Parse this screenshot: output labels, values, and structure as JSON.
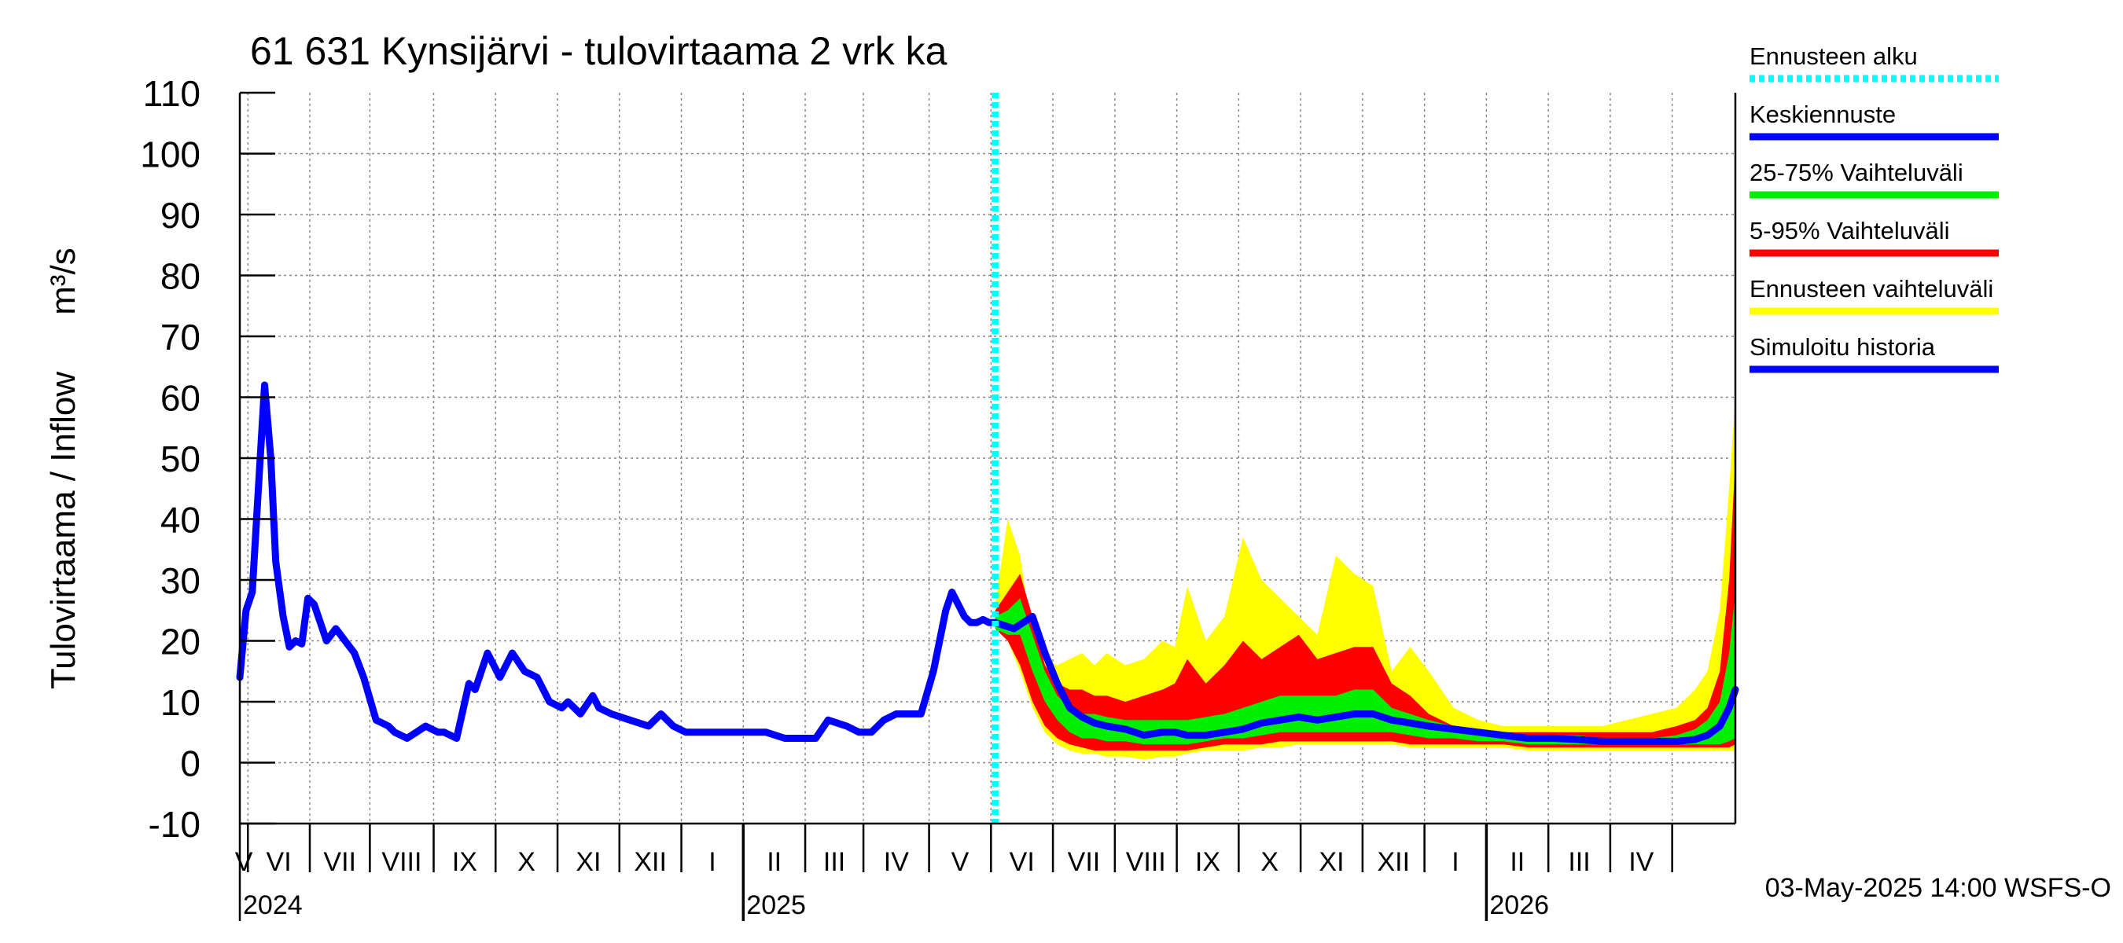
{
  "chart_data": {
    "type": "area",
    "title": "61 631 Kynsijärvi - tulovirtaama 2 vrk ka",
    "ylabel": "Tulovirtaama / Inflow",
    "yunit": "m³/s",
    "ylim": [
      -10,
      110
    ],
    "yticks": [
      -10,
      0,
      10,
      20,
      30,
      40,
      50,
      60,
      70,
      80,
      90,
      100,
      110
    ],
    "ytick_labels": [
      "-10",
      "0",
      "10",
      "20",
      "30",
      "40",
      "50",
      "60",
      "70",
      "80",
      "90",
      "100",
      "110"
    ],
    "x_unit": "months since 2024-04-28",
    "xlim": [
      0,
      24.15
    ],
    "month_ticks": [
      0.13,
      1.13,
      2.1,
      3.13,
      4.13,
      5.13,
      6.13,
      7.13,
      8.13,
      9.13,
      10.07,
      11.13,
      12.13,
      13.13,
      14.13,
      15.13,
      16.13,
      17.13,
      18.13,
      19.13,
      20.13,
      21.13,
      22.13,
      23.13
    ],
    "month_labels": [
      "V",
      "VI",
      "VII",
      "VIII",
      "IX",
      "X",
      "XI",
      "XII",
      "I",
      "II",
      "III",
      "IV",
      "V",
      "VI",
      "VII",
      "VIII",
      "IX",
      "X",
      "XI",
      "XII",
      "I",
      "II",
      "III",
      "IV"
    ],
    "year_ticks": [
      8.13,
      20.13
    ],
    "year_labels": [
      {
        "label": "2024",
        "x": 0
      },
      {
        "label": "2025",
        "x": 8.13
      },
      {
        "label": "2026",
        "x": 20.13
      }
    ],
    "forecast_start": 12.2,
    "legend": {
      "placement": "right",
      "items": [
        {
          "label": "Ennusteen alku",
          "color": "#00ffff",
          "style": "dotted"
        },
        {
          "label": "Keskiennuste",
          "color": "#0000ff",
          "style": "solid"
        },
        {
          "label": "25-75% Vaihteluväli",
          "color": "#00ee00",
          "style": "solid"
        },
        {
          "label": "5-95% Vaihteluväli",
          "color": "#ff0000",
          "style": "solid"
        },
        {
          "label": "Ennusteen vaihteluväli",
          "color": "#ffff00",
          "style": "solid"
        },
        {
          "label": "Simuloitu historia",
          "color": "#0000ff",
          "style": "solid"
        }
      ]
    },
    "footer": "03-May-2025 14:00 WSFS-O",
    "series": [
      {
        "name": "Simuloitu historia",
        "color": "#0000ff",
        "x": [
          0,
          0.1,
          0.2,
          0.3,
          0.4,
          0.5,
          0.58,
          0.7,
          0.8,
          0.9,
          1.0,
          1.1,
          1.2,
          1.4,
          1.55,
          1.7,
          1.85,
          2.0,
          2.2,
          2.4,
          2.5,
          2.7,
          2.85,
          3.0,
          3.2,
          3.3,
          3.5,
          3.7,
          3.8,
          4.0,
          4.2,
          4.4,
          4.6,
          4.8,
          5.0,
          5.2,
          5.3,
          5.5,
          5.7,
          5.8,
          6.0,
          6.3,
          6.6,
          6.8,
          7.0,
          7.2,
          7.4,
          7.6,
          7.8,
          8.0,
          8.2,
          8.5,
          8.8,
          9.0,
          9.3,
          9.5,
          9.8,
          10.0,
          10.2,
          10.4,
          10.6,
          10.8,
          11.0,
          11.2,
          11.4,
          11.5,
          11.6,
          11.7,
          11.8,
          11.9,
          12.0,
          12.1,
          12.2
        ],
        "values": [
          14,
          25,
          28,
          45,
          62,
          50,
          33,
          24,
          19,
          20,
          19.5,
          27,
          26,
          20,
          22,
          20,
          18,
          14,
          7,
          6,
          5,
          4,
          5,
          6,
          5,
          5,
          4,
          13,
          12,
          18,
          14,
          18,
          15,
          14,
          10,
          9,
          10,
          8,
          11,
          9,
          8,
          7,
          6,
          8,
          6,
          5,
          5,
          5,
          5,
          5,
          5,
          5,
          4,
          4,
          4,
          7,
          6,
          5,
          5,
          7,
          8,
          8,
          8,
          15,
          25,
          28,
          26,
          24,
          23,
          23,
          23.5,
          23,
          23
        ]
      },
      {
        "name": "Keskiennuste",
        "color": "#0000ff",
        "x": [
          12.2,
          12.5,
          12.8,
          13.0,
          13.2,
          13.4,
          13.6,
          13.8,
          14.0,
          14.3,
          14.6,
          14.9,
          15.1,
          15.3,
          15.6,
          15.9,
          16.2,
          16.5,
          16.8,
          17.1,
          17.4,
          17.7,
          18.0,
          18.3,
          18.6,
          18.9,
          19.2,
          19.6,
          20.0,
          20.4,
          20.8,
          21.2,
          21.6,
          22.0,
          22.4,
          22.8,
          23.2,
          23.5,
          23.7,
          23.9,
          24.05,
          24.15
        ],
        "values": [
          23,
          22,
          24,
          18,
          13,
          9,
          7.5,
          6.5,
          6,
          5.5,
          4.5,
          5,
          5,
          4.5,
          4.5,
          5,
          5.5,
          6.5,
          7,
          7.5,
          7,
          7.5,
          8,
          8,
          7,
          6.5,
          6,
          5.5,
          5,
          4.5,
          4,
          4,
          3.8,
          3.5,
          3.5,
          3.5,
          3.5,
          3.8,
          4.5,
          6,
          9,
          12
        ]
      }
    ],
    "bands": [
      {
        "name": "Ennusteen vaihteluväli",
        "color": "#ffff00",
        "x": [
          12.2,
          12.4,
          12.6,
          12.8,
          13.0,
          13.2,
          13.4,
          13.6,
          13.8,
          14.0,
          14.3,
          14.6,
          14.9,
          15.1,
          15.3,
          15.6,
          15.9,
          16.2,
          16.5,
          16.8,
          17.1,
          17.4,
          17.7,
          18.0,
          18.3,
          18.6,
          18.9,
          19.2,
          19.6,
          20.0,
          20.4,
          20.8,
          21.2,
          21.6,
          22.0,
          22.4,
          22.8,
          23.2,
          23.5,
          23.7,
          23.9,
          24.05,
          24.15
        ],
        "low": [
          22,
          20,
          15,
          9,
          5,
          3,
          2,
          1.5,
          1.5,
          1,
          1,
          0.5,
          1,
          1,
          1.5,
          2,
          2,
          2,
          2.5,
          2.5,
          3,
          3,
          3,
          3,
          3,
          3,
          2.5,
          2.5,
          2.5,
          2.5,
          2.5,
          2,
          2,
          2,
          2,
          2,
          2,
          2,
          2,
          2,
          2,
          2,
          2
        ],
        "high": [
          26,
          40,
          34,
          20,
          17,
          16,
          17,
          18,
          16,
          18,
          16,
          17,
          20,
          19,
          29,
          20,
          24,
          37,
          30,
          27,
          24,
          21,
          34,
          31,
          29,
          15,
          19,
          15,
          9,
          7,
          6,
          6,
          6,
          6,
          6,
          7,
          8,
          9,
          12,
          15,
          25,
          45,
          60
        ]
      },
      {
        "name": "5-95% Vaihteluväli",
        "color": "#ff0000",
        "x": [
          12.2,
          12.4,
          12.6,
          12.8,
          13.0,
          13.2,
          13.4,
          13.6,
          13.8,
          14.0,
          14.3,
          14.6,
          14.9,
          15.1,
          15.3,
          15.6,
          15.9,
          16.2,
          16.5,
          16.8,
          17.1,
          17.4,
          17.7,
          18.0,
          18.3,
          18.6,
          18.9,
          19.2,
          19.6,
          20.0,
          20.4,
          20.8,
          21.2,
          21.6,
          22.0,
          22.4,
          22.8,
          23.2,
          23.5,
          23.7,
          23.9,
          24.05,
          24.15
        ],
        "low": [
          22,
          20,
          16,
          10,
          6,
          4,
          3,
          2.5,
          2,
          2,
          2,
          2,
          2,
          2,
          2,
          2.5,
          3,
          3,
          3,
          3.5,
          3.5,
          3.5,
          3.5,
          3.5,
          3.5,
          3.5,
          3,
          3,
          3,
          3,
          3,
          2.5,
          2.5,
          2.5,
          2.5,
          2.5,
          2.5,
          2.5,
          2.5,
          2.5,
          2.5,
          2.5,
          3
        ],
        "high": [
          25,
          28,
          31,
          24,
          16,
          13,
          12,
          12,
          11,
          11,
          10,
          11,
          12,
          13,
          17,
          13,
          16,
          20,
          17,
          19,
          21,
          17,
          18,
          19,
          19,
          13,
          11,
          8,
          6,
          5.5,
          5,
          5,
          5,
          5,
          5,
          5,
          5,
          6,
          7,
          9,
          15,
          30,
          50
        ]
      },
      {
        "name": "25-75% Vaihteluväli",
        "color": "#00ee00",
        "x": [
          12.2,
          12.4,
          12.6,
          12.8,
          13.0,
          13.2,
          13.4,
          13.6,
          13.8,
          14.0,
          14.3,
          14.6,
          14.9,
          15.1,
          15.3,
          15.6,
          15.9,
          16.2,
          16.5,
          16.8,
          17.1,
          17.4,
          17.7,
          18.0,
          18.3,
          18.6,
          18.9,
          19.2,
          19.6,
          20.0,
          20.4,
          20.8,
          21.2,
          21.6,
          22.0,
          22.4,
          22.8,
          23.2,
          23.5,
          23.7,
          23.9,
          24.05,
          24.15
        ],
        "low": [
          22,
          21,
          21,
          15,
          10,
          7,
          5,
          4,
          4,
          3.5,
          3.5,
          3,
          3,
          3,
          3,
          3.5,
          4,
          4,
          4.5,
          5,
          5,
          5,
          5,
          5,
          5,
          5,
          4.5,
          4,
          4,
          3.5,
          3.5,
          3,
          3,
          3,
          3,
          3,
          3,
          3,
          3,
          3,
          3,
          3.5,
          4
        ],
        "high": [
          24,
          25,
          27,
          21,
          15,
          11,
          9,
          8,
          8,
          7.5,
          7,
          7,
          7,
          7,
          7,
          7.5,
          8,
          9,
          10,
          11,
          11,
          11,
          11,
          12,
          12,
          9,
          8,
          7,
          6,
          5,
          4.5,
          4.5,
          4.5,
          4.5,
          4,
          4,
          4,
          4.5,
          5.5,
          7,
          10,
          18,
          28
        ]
      }
    ]
  }
}
